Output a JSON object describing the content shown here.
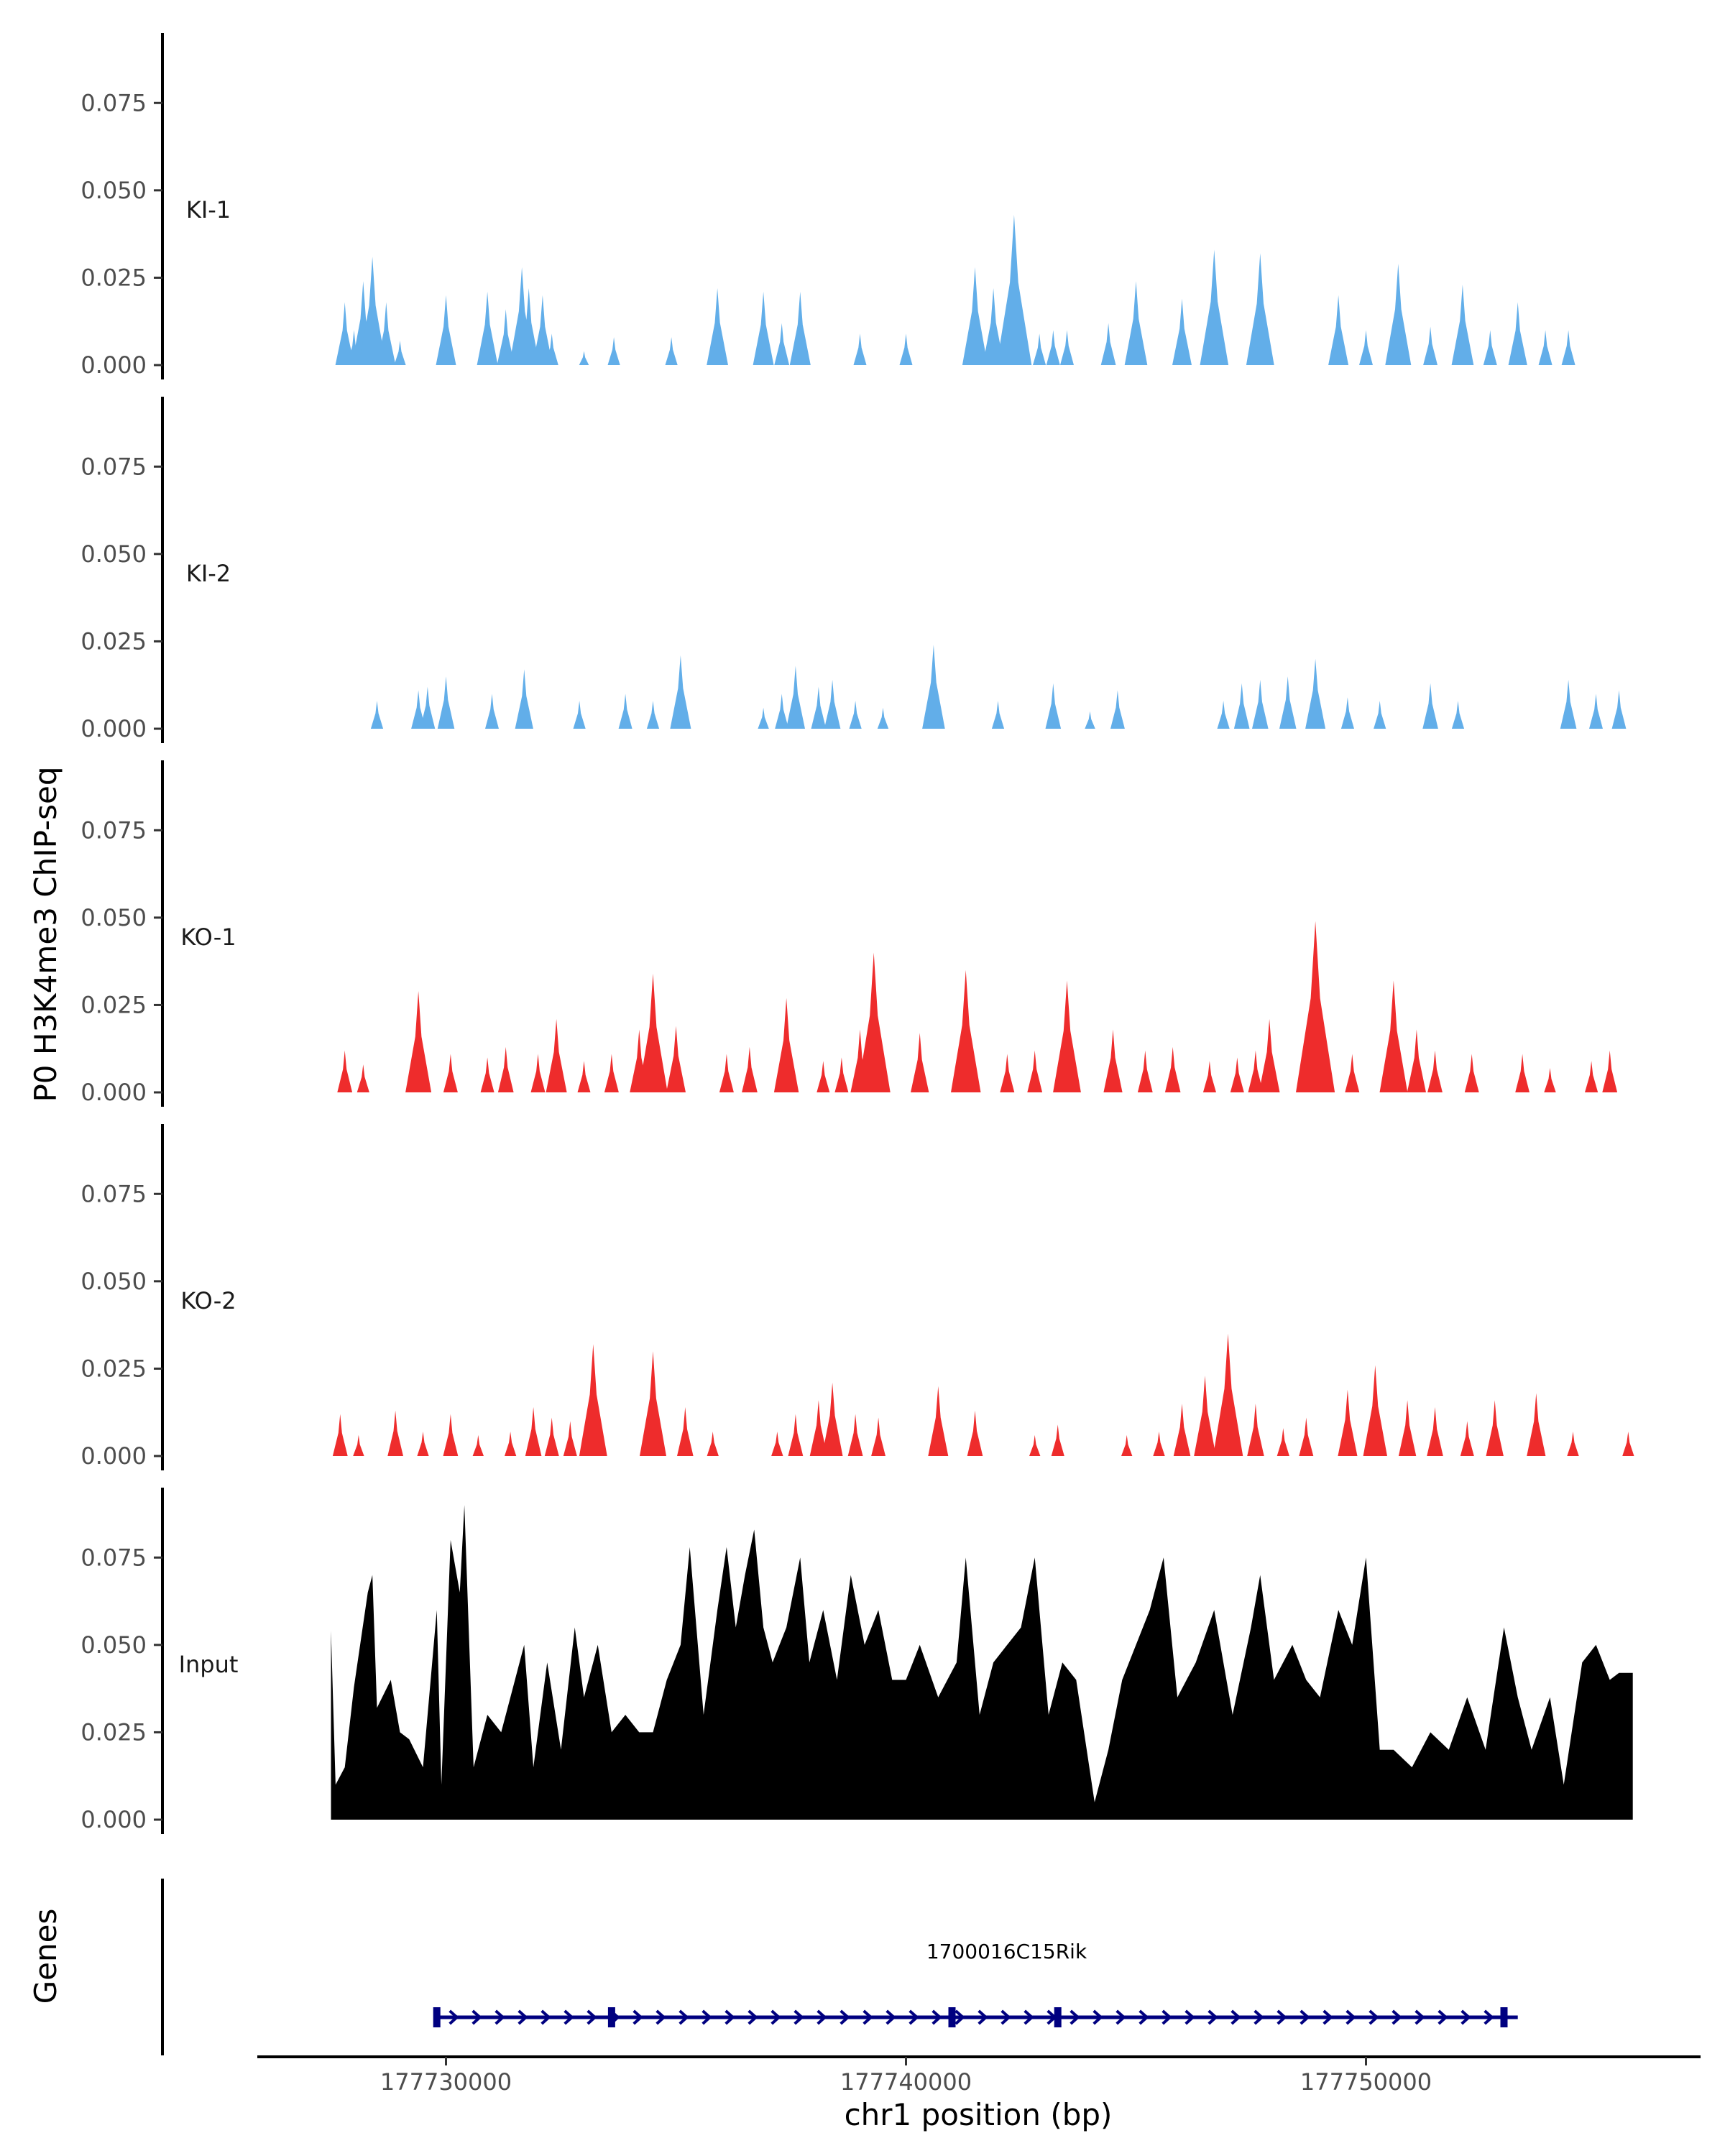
{
  "chart_data": {
    "type": "area",
    "title": "",
    "ylabel": "P0 H3K4me3 ChIP-seq",
    "xlabel": "chr1 position (bp)",
    "gene_track_label": "Genes",
    "x_range": [
      177726000,
      177757500
    ],
    "x_ticks": [
      177730000,
      177740000,
      177750000
    ],
    "x_tick_labels": [
      "177730000",
      "177740000",
      "177750000"
    ],
    "ylim": [
      0,
      0.095
    ],
    "y_ticks": [
      0,
      0.025,
      0.05,
      0.075
    ],
    "y_tick_labels": [
      "0.000",
      "0.025",
      "0.050",
      "0.075"
    ],
    "series": [
      {
        "name": "KI-1",
        "color": "#62AEE9",
        "peaks": [
          [
            177727800,
            0.018
          ],
          [
            177728000,
            0.01
          ],
          [
            177728200,
            0.024
          ],
          [
            177728400,
            0.031
          ],
          [
            177728700,
            0.018
          ],
          [
            177729000,
            0.007
          ],
          [
            177730000,
            0.02
          ],
          [
            177730900,
            0.021
          ],
          [
            177731300,
            0.016
          ],
          [
            177731650,
            0.028
          ],
          [
            177731800,
            0.022
          ],
          [
            177732100,
            0.02
          ],
          [
            177732300,
            0.009
          ],
          [
            177733000,
            0.004
          ],
          [
            177733650,
            0.008
          ],
          [
            177734900,
            0.008
          ],
          [
            177735900,
            0.022
          ],
          [
            177736900,
            0.021
          ],
          [
            177737300,
            0.012
          ],
          [
            177737700,
            0.021
          ],
          [
            177739000,
            0.009
          ],
          [
            177740000,
            0.009
          ],
          [
            177741500,
            0.028
          ],
          [
            177741900,
            0.022
          ],
          [
            177742350,
            0.043
          ],
          [
            177742900,
            0.009
          ],
          [
            177743200,
            0.01
          ],
          [
            177743500,
            0.01
          ],
          [
            177744400,
            0.012
          ],
          [
            177745000,
            0.024
          ],
          [
            177746000,
            0.019
          ],
          [
            177746700,
            0.033
          ],
          [
            177747700,
            0.032
          ],
          [
            177749400,
            0.02
          ],
          [
            177750000,
            0.01
          ],
          [
            177750700,
            0.029
          ],
          [
            177751400,
            0.011
          ],
          [
            177752100,
            0.023
          ],
          [
            177752700,
            0.01
          ],
          [
            177753300,
            0.018
          ],
          [
            177753900,
            0.01
          ],
          [
            177754400,
            0.01
          ]
        ]
      },
      {
        "name": "KI-2",
        "color": "#62AEE9",
        "peaks": [
          [
            177728500,
            0.008
          ],
          [
            177729400,
            0.011
          ],
          [
            177729600,
            0.012
          ],
          [
            177730000,
            0.015
          ],
          [
            177731000,
            0.01
          ],
          [
            177731700,
            0.017
          ],
          [
            177732900,
            0.008
          ],
          [
            177733900,
            0.01
          ],
          [
            177734500,
            0.008
          ],
          [
            177735100,
            0.021
          ],
          [
            177736900,
            0.006
          ],
          [
            177737300,
            0.01
          ],
          [
            177737600,
            0.018
          ],
          [
            177738100,
            0.012
          ],
          [
            177738400,
            0.014
          ],
          [
            177738900,
            0.008
          ],
          [
            177739500,
            0.006
          ],
          [
            177740600,
            0.024
          ],
          [
            177742000,
            0.008
          ],
          [
            177743200,
            0.013
          ],
          [
            177744000,
            0.005
          ],
          [
            177744600,
            0.011
          ],
          [
            177746900,
            0.008
          ],
          [
            177747300,
            0.013
          ],
          [
            177747700,
            0.014
          ],
          [
            177748300,
            0.015
          ],
          [
            177748900,
            0.02
          ],
          [
            177749600,
            0.009
          ],
          [
            177750300,
            0.008
          ],
          [
            177751400,
            0.013
          ],
          [
            177752000,
            0.008
          ],
          [
            177754400,
            0.014
          ],
          [
            177755000,
            0.01
          ],
          [
            177755500,
            0.011
          ]
        ]
      },
      {
        "name": "KO-1",
        "color": "#EE2C2C",
        "peaks": [
          [
            177727800,
            0.012
          ],
          [
            177728200,
            0.008
          ],
          [
            177729400,
            0.029
          ],
          [
            177730100,
            0.011
          ],
          [
            177730900,
            0.01
          ],
          [
            177731300,
            0.013
          ],
          [
            177732000,
            0.011
          ],
          [
            177732400,
            0.021
          ],
          [
            177733000,
            0.009
          ],
          [
            177733600,
            0.011
          ],
          [
            177734200,
            0.018
          ],
          [
            177734500,
            0.034
          ],
          [
            177735000,
            0.019
          ],
          [
            177736100,
            0.011
          ],
          [
            177736600,
            0.013
          ],
          [
            177737400,
            0.027
          ],
          [
            177738200,
            0.009
          ],
          [
            177738600,
            0.01
          ],
          [
            177739000,
            0.018
          ],
          [
            177739300,
            0.04
          ],
          [
            177740300,
            0.017
          ],
          [
            177741300,
            0.035
          ],
          [
            177742200,
            0.011
          ],
          [
            177742800,
            0.012
          ],
          [
            177743500,
            0.032
          ],
          [
            177744500,
            0.018
          ],
          [
            177745200,
            0.012
          ],
          [
            177745800,
            0.013
          ],
          [
            177746600,
            0.009
          ],
          [
            177747200,
            0.01
          ],
          [
            177747600,
            0.012
          ],
          [
            177747900,
            0.021
          ],
          [
            177748900,
            0.049
          ],
          [
            177749700,
            0.011
          ],
          [
            177750600,
            0.032
          ],
          [
            177751100,
            0.018
          ],
          [
            177751500,
            0.012
          ],
          [
            177752300,
            0.011
          ],
          [
            177753400,
            0.011
          ],
          [
            177754000,
            0.007
          ],
          [
            177754900,
            0.009
          ],
          [
            177755300,
            0.012
          ]
        ]
      },
      {
        "name": "KO-2",
        "color": "#EE2C2C",
        "peaks": [
          [
            177727700,
            0.012
          ],
          [
            177728100,
            0.006
          ],
          [
            177728900,
            0.013
          ],
          [
            177729500,
            0.007
          ],
          [
            177730100,
            0.012
          ],
          [
            177730700,
            0.006
          ],
          [
            177731400,
            0.007
          ],
          [
            177731900,
            0.014
          ],
          [
            177732300,
            0.011
          ],
          [
            177732700,
            0.01
          ],
          [
            177733200,
            0.032
          ],
          [
            177734500,
            0.03
          ],
          [
            177735200,
            0.014
          ],
          [
            177735800,
            0.007
          ],
          [
            177737200,
            0.007
          ],
          [
            177737600,
            0.012
          ],
          [
            177738100,
            0.016
          ],
          [
            177738400,
            0.021
          ],
          [
            177738900,
            0.012
          ],
          [
            177739400,
            0.011
          ],
          [
            177740700,
            0.02
          ],
          [
            177741500,
            0.013
          ],
          [
            177742800,
            0.006
          ],
          [
            177743300,
            0.009
          ],
          [
            177744800,
            0.006
          ],
          [
            177745500,
            0.007
          ],
          [
            177746000,
            0.015
          ],
          [
            177746500,
            0.023
          ],
          [
            177747000,
            0.035
          ],
          [
            177747600,
            0.015
          ],
          [
            177748200,
            0.008
          ],
          [
            177748700,
            0.011
          ],
          [
            177749600,
            0.019
          ],
          [
            177750200,
            0.026
          ],
          [
            177750900,
            0.016
          ],
          [
            177751500,
            0.014
          ],
          [
            177752200,
            0.01
          ],
          [
            177752800,
            0.016
          ],
          [
            177753700,
            0.018
          ],
          [
            177754500,
            0.007
          ],
          [
            177755700,
            0.007
          ]
        ]
      },
      {
        "name": "Input",
        "color": "#000000",
        "profile": [
          [
            177727500,
            0.054
          ],
          [
            177727600,
            0.01
          ],
          [
            177727800,
            0.015
          ],
          [
            177728000,
            0.038
          ],
          [
            177728300,
            0.065
          ],
          [
            177728400,
            0.07
          ],
          [
            177728500,
            0.032
          ],
          [
            177728800,
            0.04
          ],
          [
            177729000,
            0.025
          ],
          [
            177729200,
            0.023
          ],
          [
            177729500,
            0.015
          ],
          [
            177729800,
            0.06
          ],
          [
            177729900,
            0.01
          ],
          [
            177730100,
            0.08
          ],
          [
            177730300,
            0.065
          ],
          [
            177730400,
            0.09
          ],
          [
            177730600,
            0.015
          ],
          [
            177730900,
            0.03
          ],
          [
            177731200,
            0.025
          ],
          [
            177731500,
            0.04
          ],
          [
            177731700,
            0.05
          ],
          [
            177731900,
            0.015
          ],
          [
            177732200,
            0.045
          ],
          [
            177732500,
            0.02
          ],
          [
            177732800,
            0.055
          ],
          [
            177733000,
            0.035
          ],
          [
            177733300,
            0.05
          ],
          [
            177733600,
            0.025
          ],
          [
            177733900,
            0.03
          ],
          [
            177734200,
            0.025
          ],
          [
            177734500,
            0.025
          ],
          [
            177734800,
            0.04
          ],
          [
            177735100,
            0.05
          ],
          [
            177735300,
            0.078
          ],
          [
            177735600,
            0.03
          ],
          [
            177735900,
            0.06
          ],
          [
            177736100,
            0.078
          ],
          [
            177736300,
            0.055
          ],
          [
            177736500,
            0.07
          ],
          [
            177736700,
            0.083
          ],
          [
            177736900,
            0.055
          ],
          [
            177737100,
            0.045
          ],
          [
            177737400,
            0.055
          ],
          [
            177737700,
            0.075
          ],
          [
            177737900,
            0.045
          ],
          [
            177738200,
            0.06
          ],
          [
            177738500,
            0.04
          ],
          [
            177738800,
            0.07
          ],
          [
            177739100,
            0.05
          ],
          [
            177739400,
            0.06
          ],
          [
            177739700,
            0.04
          ],
          [
            177740000,
            0.04
          ],
          [
            177740300,
            0.05
          ],
          [
            177740700,
            0.035
          ],
          [
            177741100,
            0.045
          ],
          [
            177741300,
            0.075
          ],
          [
            177741600,
            0.03
          ],
          [
            177741900,
            0.045
          ],
          [
            177742200,
            0.05
          ],
          [
            177742500,
            0.055
          ],
          [
            177742800,
            0.075
          ],
          [
            177743100,
            0.03
          ],
          [
            177743400,
            0.045
          ],
          [
            177743700,
            0.04
          ],
          [
            177744100,
            0.005
          ],
          [
            177744400,
            0.02
          ],
          [
            177744700,
            0.04
          ],
          [
            177745000,
            0.05
          ],
          [
            177745300,
            0.06
          ],
          [
            177745600,
            0.075
          ],
          [
            177745900,
            0.035
          ],
          [
            177746300,
            0.045
          ],
          [
            177746700,
            0.06
          ],
          [
            177747100,
            0.03
          ],
          [
            177747500,
            0.055
          ],
          [
            177747700,
            0.07
          ],
          [
            177748000,
            0.04
          ],
          [
            177748400,
            0.05
          ],
          [
            177748700,
            0.04
          ],
          [
            177749000,
            0.035
          ],
          [
            177749400,
            0.06
          ],
          [
            177749700,
            0.05
          ],
          [
            177750000,
            0.075
          ],
          [
            177750300,
            0.02
          ],
          [
            177750600,
            0.02
          ],
          [
            177751000,
            0.015
          ],
          [
            177751400,
            0.025
          ],
          [
            177751800,
            0.02
          ],
          [
            177752200,
            0.035
          ],
          [
            177752600,
            0.02
          ],
          [
            177753000,
            0.055
          ],
          [
            177753300,
            0.035
          ],
          [
            177753600,
            0.02
          ],
          [
            177754000,
            0.035
          ],
          [
            177754300,
            0.01
          ],
          [
            177754700,
            0.045
          ],
          [
            177755000,
            0.05
          ],
          [
            177755300,
            0.04
          ],
          [
            177755500,
            0.042
          ],
          [
            177755800,
            0.042
          ]
        ]
      }
    ],
    "gene": {
      "name": "1700016C15Rik",
      "strand": "+",
      "color": "#000080",
      "start": 177729800,
      "end": 177753300,
      "exons": [
        177729800,
        177733600,
        177741000,
        177743300,
        177753000
      ]
    }
  }
}
